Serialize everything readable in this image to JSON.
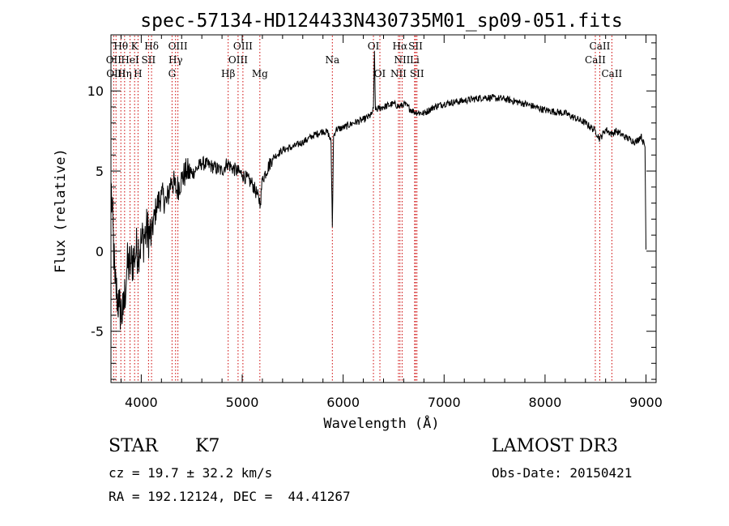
{
  "chart_data": {
    "type": "line",
    "title": "spec-57134-HD124433N430735M01_sp09-051.fits",
    "xlabel": "Wavelength (Å)",
    "ylabel": "Flux (relative)",
    "xlim": [
      3700,
      9100
    ],
    "ylim": [
      -8.2,
      13.5
    ],
    "xticks": [
      4000,
      5000,
      6000,
      7000,
      8000,
      9000
    ],
    "yticks": [
      -5,
      0,
      5,
      10
    ],
    "grid": false,
    "series": [
      {
        "name": "flux",
        "x": [
          3700,
          3740,
          3780,
          3820,
          3860,
          3900,
          3950,
          4000,
          4050,
          4100,
          4150,
          4200,
          4250,
          4300,
          4350,
          4400,
          4450,
          4500,
          4600,
          4700,
          4800,
          4850,
          4900,
          5000,
          5100,
          5150,
          5180,
          5200,
          5300,
          5400,
          5500,
          5600,
          5700,
          5800,
          5850,
          5880,
          5893,
          5905,
          5930,
          6000,
          6100,
          6200,
          6280,
          6300,
          6310,
          6320,
          6350,
          6400,
          6500,
          6563,
          6600,
          6700,
          6800,
          6900,
          7000,
          7200,
          7400,
          7600,
          7800,
          8000,
          8200,
          8400,
          8500,
          8542,
          8600,
          8662,
          8700,
          8800,
          8900,
          8950,
          8990,
          9000
        ],
        "y": [
          4.3,
          -2.0,
          -3.5,
          -4.0,
          -1.0,
          -0.8,
          0.0,
          0.5,
          1.2,
          1.0,
          2.8,
          3.5,
          3.0,
          4.5,
          3.8,
          4.5,
          5.0,
          4.8,
          5.5,
          5.3,
          5.0,
          5.5,
          5.2,
          4.8,
          4.2,
          3.5,
          3.0,
          4.5,
          5.8,
          6.3,
          6.5,
          6.8,
          7.2,
          7.5,
          7.4,
          6.8,
          1.5,
          7.2,
          7.6,
          7.7,
          8.0,
          8.2,
          8.5,
          8.9,
          12.5,
          8.8,
          8.9,
          9.0,
          9.2,
          9.0,
          9.2,
          8.7,
          8.6,
          9.0,
          9.2,
          9.4,
          9.6,
          9.5,
          9.2,
          8.8,
          8.6,
          8.0,
          7.5,
          7.0,
          7.6,
          7.3,
          7.5,
          7.1,
          6.8,
          7.2,
          6.5,
          0.1
        ]
      }
    ],
    "lines_top": [
      {
        "label": "Hθ",
        "x": 3798
      },
      {
        "label": "K",
        "x": 3934
      },
      {
        "label": "Hδ",
        "x": 4102
      },
      {
        "label": "OIII",
        "x": 4363
      },
      {
        "label": "OIII",
        "x": 5007
      },
      {
        "label": "OI",
        "x": 6300
      },
      {
        "label": "Hα",
        "x": 6563
      },
      {
        "label": "SII",
        "x": 6717
      },
      {
        "label": "CaII",
        "x": 8542
      }
    ],
    "lines_mid": [
      {
        "label": "OII",
        "x": 3727
      },
      {
        "label": "HeI",
        "x": 3889
      },
      {
        "label": "SII",
        "x": 4072
      },
      {
        "label": "Hγ",
        "x": 4340
      },
      {
        "label": "OIII",
        "x": 4959
      },
      {
        "label": "Na",
        "x": 5893
      },
      {
        "label": "NII",
        "x": 6584
      },
      {
        "label": "Li",
        "x": 6708
      },
      {
        "label": "CaII",
        "x": 8498
      }
    ],
    "lines_low": [
      {
        "label": "OIII",
        "x": 3750
      },
      {
        "label": "Hη",
        "x": 3835
      },
      {
        "label": "H",
        "x": 3968
      },
      {
        "label": "G",
        "x": 4305
      },
      {
        "label": "Hβ",
        "x": 4861
      },
      {
        "label": "Mg",
        "x": 5175
      },
      {
        "label": "OI",
        "x": 6364
      },
      {
        "label": "NII",
        "x": 6548
      },
      {
        "label": "SII",
        "x": 6731
      },
      {
        "label": "CaII",
        "x": 8662
      }
    ]
  },
  "info": {
    "object_class": "STAR",
    "subclass": "K7",
    "survey": "LAMOST DR3",
    "cz_text": "cz = 19.7 ± 32.2 km/s",
    "obs_date_text": "Obs-Date: 20150421",
    "radec_text": "RA = 192.12124, DEC =  44.41267"
  }
}
